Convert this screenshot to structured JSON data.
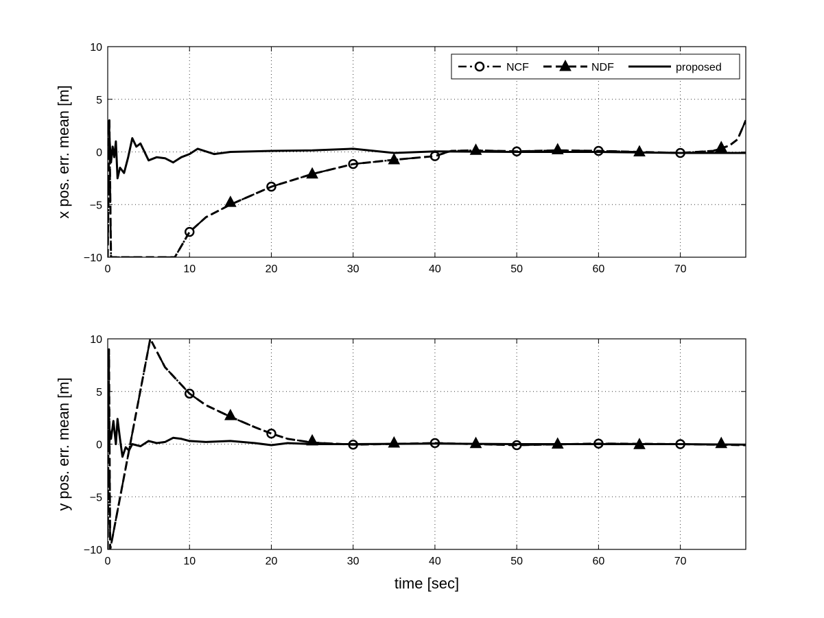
{
  "chart_data": [
    {
      "type": "line",
      "title": "",
      "xlabel": "",
      "ylabel": "x pos. err. mean [m]",
      "xlim": [
        0,
        78
      ],
      "ylim": [
        -10,
        10
      ],
      "xticks": [
        0,
        10,
        20,
        30,
        40,
        50,
        60,
        70
      ],
      "yticks": [
        -10,
        -5,
        0,
        5,
        10
      ],
      "grid": true,
      "legend": {
        "placement": "top-right",
        "entries": [
          "NCF",
          "NDF",
          "proposed"
        ]
      },
      "series": [
        {
          "name": "NCF",
          "style": "dash-dot",
          "marker": "circle",
          "x": [
            0,
            0.2,
            0.4,
            8.2,
            10,
            12,
            15,
            20,
            25,
            30,
            35,
            40,
            42,
            45,
            50,
            55,
            60,
            65,
            70,
            74,
            76,
            77,
            78
          ],
          "y": [
            -10,
            3,
            -10,
            -10,
            -7.6,
            -6.2,
            -5.0,
            -3.3,
            -2.1,
            -1.15,
            -0.75,
            -0.4,
            0.1,
            0.15,
            0.05,
            0.15,
            0.1,
            0.0,
            -0.1,
            0.1,
            0.6,
            1.2,
            3.0
          ],
          "markers": [
            [
              10,
              -7.6
            ],
            [
              20,
              -3.3
            ],
            [
              30,
              -1.15
            ],
            [
              40,
              -0.4
            ],
            [
              50,
              0.05
            ],
            [
              60,
              0.1
            ],
            [
              70,
              -0.1
            ]
          ]
        },
        {
          "name": "NDF",
          "style": "dashed",
          "marker": "triangle",
          "x": [
            0,
            0.2,
            0.4,
            8.2,
            10,
            12,
            15,
            20,
            25,
            30,
            35,
            40,
            42,
            45,
            50,
            55,
            60,
            65,
            70,
            74,
            76,
            77,
            78
          ],
          "y": [
            -10,
            3,
            -10,
            -10,
            -7.6,
            -6.2,
            -5.0,
            -3.3,
            -2.1,
            -1.15,
            -0.75,
            -0.4,
            0.1,
            0.15,
            0.05,
            0.15,
            0.1,
            0.0,
            -0.1,
            0.1,
            0.6,
            1.2,
            3.0
          ],
          "markers": [
            [
              15,
              -4.8
            ],
            [
              25,
              -2.1
            ],
            [
              35,
              -0.75
            ],
            [
              45,
              0.15
            ],
            [
              55,
              0.2
            ],
            [
              65,
              0.0
            ],
            [
              75,
              0.4
            ]
          ]
        },
        {
          "name": "proposed",
          "style": "solid",
          "marker": "none",
          "x": [
            0,
            0.2,
            0.4,
            0.6,
            0.8,
            1.0,
            1.2,
            1.5,
            2.0,
            2.5,
            3.0,
            3.5,
            4.0,
            5.0,
            6.0,
            7.0,
            8.0,
            9.0,
            10.0,
            11.0,
            13.0,
            15.0,
            20.0,
            25.0,
            30.0,
            35.0,
            40.0,
            50.0,
            60.0,
            70.0,
            78.0
          ],
          "y": [
            3.0,
            1.5,
            -1.0,
            0.5,
            -0.5,
            1.0,
            -2.5,
            -1.5,
            -2.0,
            -0.5,
            1.3,
            0.5,
            0.8,
            -0.8,
            -0.5,
            -0.6,
            -1.0,
            -0.5,
            -0.2,
            0.3,
            -0.2,
            0.0,
            0.1,
            0.15,
            0.3,
            -0.1,
            0.05,
            0.0,
            0.0,
            -0.1,
            -0.1
          ]
        }
      ]
    },
    {
      "type": "line",
      "title": "",
      "xlabel": "time [sec]",
      "ylabel": "y pos. err. mean [m]",
      "xlim": [
        0,
        78
      ],
      "ylim": [
        -10,
        10
      ],
      "xticks": [
        0,
        10,
        20,
        30,
        40,
        50,
        60,
        70
      ],
      "yticks": [
        -10,
        -5,
        0,
        5,
        10
      ],
      "grid": true,
      "series": [
        {
          "name": "NCF",
          "style": "dash-dot",
          "marker": "circle",
          "x": [
            0,
            0.15,
            0.3,
            5.2,
            7.0,
            10,
            12,
            15,
            18,
            20,
            22,
            25,
            30,
            40,
            50,
            60,
            70,
            78
          ],
          "y": [
            -10,
            9,
            -10,
            10,
            7.3,
            4.8,
            3.7,
            2.6,
            1.6,
            1.0,
            0.5,
            0.15,
            -0.05,
            0.1,
            -0.1,
            0.05,
            0.0,
            -0.1
          ],
          "markers": [
            [
              10,
              4.8
            ],
            [
              20,
              1.0
            ],
            [
              30,
              -0.05
            ],
            [
              40,
              0.1
            ],
            [
              50,
              -0.1
            ],
            [
              60,
              0.05
            ],
            [
              70,
              0.0
            ]
          ]
        },
        {
          "name": "NDF",
          "style": "dashed",
          "marker": "triangle",
          "x": [
            0,
            0.15,
            0.3,
            5.2,
            7.0,
            10,
            12,
            15,
            18,
            20,
            22,
            25,
            30,
            40,
            50,
            60,
            70,
            78
          ],
          "y": [
            -10,
            9,
            -10,
            10,
            7.3,
            4.8,
            3.7,
            2.6,
            1.6,
            1.0,
            0.5,
            0.15,
            -0.05,
            0.1,
            -0.1,
            0.05,
            0.0,
            -0.1
          ],
          "markers": [
            [
              15,
              2.7
            ],
            [
              25,
              0.3
            ],
            [
              35,
              0.1
            ],
            [
              45,
              0.05
            ],
            [
              55,
              0.0
            ],
            [
              65,
              -0.05
            ],
            [
              75,
              0.05
            ]
          ]
        },
        {
          "name": "proposed",
          "style": "solid",
          "marker": "none",
          "x": [
            0,
            0.2,
            0.4,
            0.7,
            1.0,
            1.2,
            1.5,
            1.8,
            2.2,
            2.6,
            3.0,
            4.0,
            5.0,
            6.0,
            7.0,
            8.0,
            9.0,
            10.0,
            12.0,
            15.0,
            18.0,
            20.0,
            22.0,
            25.0,
            30.0,
            40.0,
            50.0,
            60.0,
            70.0,
            78.0
          ],
          "y": [
            5.0,
            1.5,
            0.5,
            2.2,
            0.0,
            2.4,
            0.5,
            -1.2,
            -0.3,
            -0.6,
            0.0,
            -0.2,
            0.3,
            0.1,
            0.2,
            0.6,
            0.5,
            0.3,
            0.2,
            0.3,
            0.1,
            -0.1,
            0.1,
            0.0,
            0.0,
            0.05,
            0.0,
            0.0,
            0.0,
            -0.05
          ]
        }
      ]
    }
  ]
}
